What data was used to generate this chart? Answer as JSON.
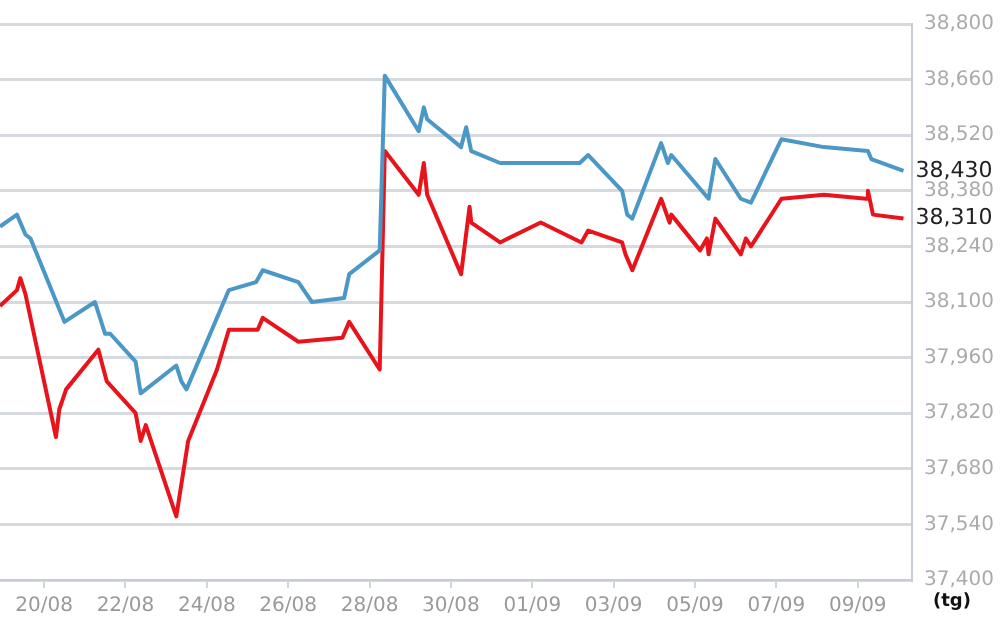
{
  "chart_data": {
    "type": "line",
    "xlabel": "(tg)",
    "xlim": [
      "--08-18T22:00",
      "--09-10T08:00"
    ],
    "xticks": [
      {
        "value": "--08-20",
        "label": "20/08"
      },
      {
        "value": "--08-22",
        "label": "22/08"
      },
      {
        "value": "--08-24",
        "label": "24/08"
      },
      {
        "value": "--08-26",
        "label": "26/08"
      },
      {
        "value": "--08-28",
        "label": "28/08"
      },
      {
        "value": "--08-30",
        "label": "30/08"
      },
      {
        "value": "--09-01",
        "label": "01/09"
      },
      {
        "value": "--09-03",
        "label": "03/09"
      },
      {
        "value": "--09-05",
        "label": "05/09"
      },
      {
        "value": "--09-07",
        "label": "07/09"
      },
      {
        "value": "--09-09",
        "label": "09/09"
      }
    ],
    "ylim": [
      37400,
      38800
    ],
    "yticks": [
      {
        "value": 37400,
        "label": "37,400"
      },
      {
        "value": 37540,
        "label": "37,540"
      },
      {
        "value": 37680,
        "label": "37,680"
      },
      {
        "value": 37820,
        "label": "37,820"
      },
      {
        "value": 37960,
        "label": "37,960"
      },
      {
        "value": 38100,
        "label": "38,100"
      },
      {
        "value": 38240,
        "label": "38,240"
      },
      {
        "value": 38380,
        "label": "38,380"
      },
      {
        "value": 38520,
        "label": "38,520"
      },
      {
        "value": 38660,
        "label": "38,660"
      },
      {
        "value": 38800,
        "label": "38,800"
      }
    ],
    "grid": "y",
    "legend": false,
    "marker": "none",
    "line_style": "solid",
    "series": [
      {
        "color": "#4b97c6",
        "x": [
          "--08-18T22:00",
          "--08-19T08:00",
          "--08-19T13:00",
          "--08-19T16:00",
          "--08-20T12:00",
          "--08-21T06:00",
          "--08-21T12:00",
          "--08-21T15:00",
          "--08-22T06:00",
          "--08-22T09:00",
          "--08-23T06:00",
          "--08-23T09:00",
          "--08-23T12:00",
          "--08-24T13:00",
          "--08-25T05:00",
          "--08-25T09:00",
          "--08-26T06:00",
          "--08-26T14:00",
          "--08-27T09:00",
          "--08-27T12:00",
          "--08-28T06:00",
          "--08-28T09:00",
          "--08-29T05:00",
          "--08-29T08:00",
          "--08-29T10:00",
          "--08-30T06:00",
          "--08-30T09:00",
          "--08-30T12:00",
          "--08-31T05:00",
          "--09-02T04:00",
          "--09-02T09:00",
          "--09-03T05:00",
          "--09-03T08:00",
          "--09-03T11:00",
          "--09-04T04:00",
          "--09-04T08:00",
          "--09-04T10:00",
          "--09-05T06:00",
          "--09-05T08:00",
          "--09-05T12:00",
          "--09-06T03:00",
          "--09-06T09:00",
          "--09-07T03:00",
          "--09-08T04:00",
          "--09-09T06:00",
          "--09-09T08:00",
          "--09-10T03:00"
        ],
        "values": [
          38290,
          38320,
          38270,
          38260,
          38050,
          38100,
          38020,
          38020,
          37950,
          37870,
          37940,
          37900,
          37880,
          38130,
          38150,
          38180,
          38150,
          38100,
          38110,
          38170,
          38230,
          38670,
          38530,
          38590,
          38560,
          38490,
          38540,
          38480,
          38450,
          38450,
          38470,
          38380,
          38320,
          38310,
          38500,
          38450,
          38470,
          38370,
          38360,
          38460,
          38360,
          38350,
          38510,
          38490,
          38480,
          38460,
          38430
        ]
      },
      {
        "color": "#e8141c",
        "x": [
          "--08-18T22:00",
          "--08-19T08:00",
          "--08-19T10:00",
          "--08-19T13:00",
          "--08-20T07:00",
          "--08-20T09:00",
          "--08-20T13:00",
          "--08-21T08:00",
          "--08-21T13:00",
          "--08-22T06:00",
          "--08-22T09:00",
          "--08-22T12:00",
          "--08-23T06:00",
          "--08-23T13:00",
          "--08-24T06:00",
          "--08-24T13:00",
          "--08-25T06:00",
          "--08-25T09:00",
          "--08-26T06:00",
          "--08-27T08:00",
          "--08-27T12:00",
          "--08-28T06:00",
          "--08-28T09:00",
          "--08-29T05:00",
          "--08-29T08:00",
          "--08-29T10:00",
          "--08-30T06:00",
          "--08-30T11:00",
          "--08-30T12:00",
          "--08-31T05:00",
          "--09-01T05:00",
          "--09-02T05:00",
          "--09-02T09:00",
          "--09-03T05:00",
          "--09-03T07:00",
          "--09-03T11:00",
          "--09-04T04:00",
          "--09-04T09:00",
          "--09-04T10:00",
          "--09-05T03:00",
          "--09-05T07:00",
          "--09-05T08:00",
          "--09-05T12:00",
          "--09-06T03:00",
          "--09-06T06:00",
          "--09-06T09:00",
          "--09-07T03:00",
          "--09-08T04:00",
          "--09-09T05:00",
          "--09-09T06:00",
          "--09-09T09:00",
          "--09-10T03:00"
        ],
        "values": [
          38090,
          38130,
          38160,
          38120,
          37760,
          37830,
          37880,
          37980,
          37900,
          37820,
          37750,
          37790,
          37560,
          37750,
          37930,
          38030,
          38030,
          38060,
          38000,
          38010,
          38050,
          37930,
          38480,
          38370,
          38450,
          38370,
          38170,
          38340,
          38300,
          38250,
          38300,
          38250,
          38280,
          38250,
          38220,
          38180,
          38360,
          38300,
          38320,
          38230,
          38260,
          38220,
          38310,
          38220,
          38260,
          38240,
          38360,
          38370,
          38360,
          38380,
          38320,
          38310
        ]
      }
    ],
    "annotations": [
      {
        "text": "38,430",
        "x": "--09-10T03:00",
        "y": 38430
      },
      {
        "text": "38,310",
        "x": "--09-10T03:00",
        "y": 38310
      }
    ]
  }
}
